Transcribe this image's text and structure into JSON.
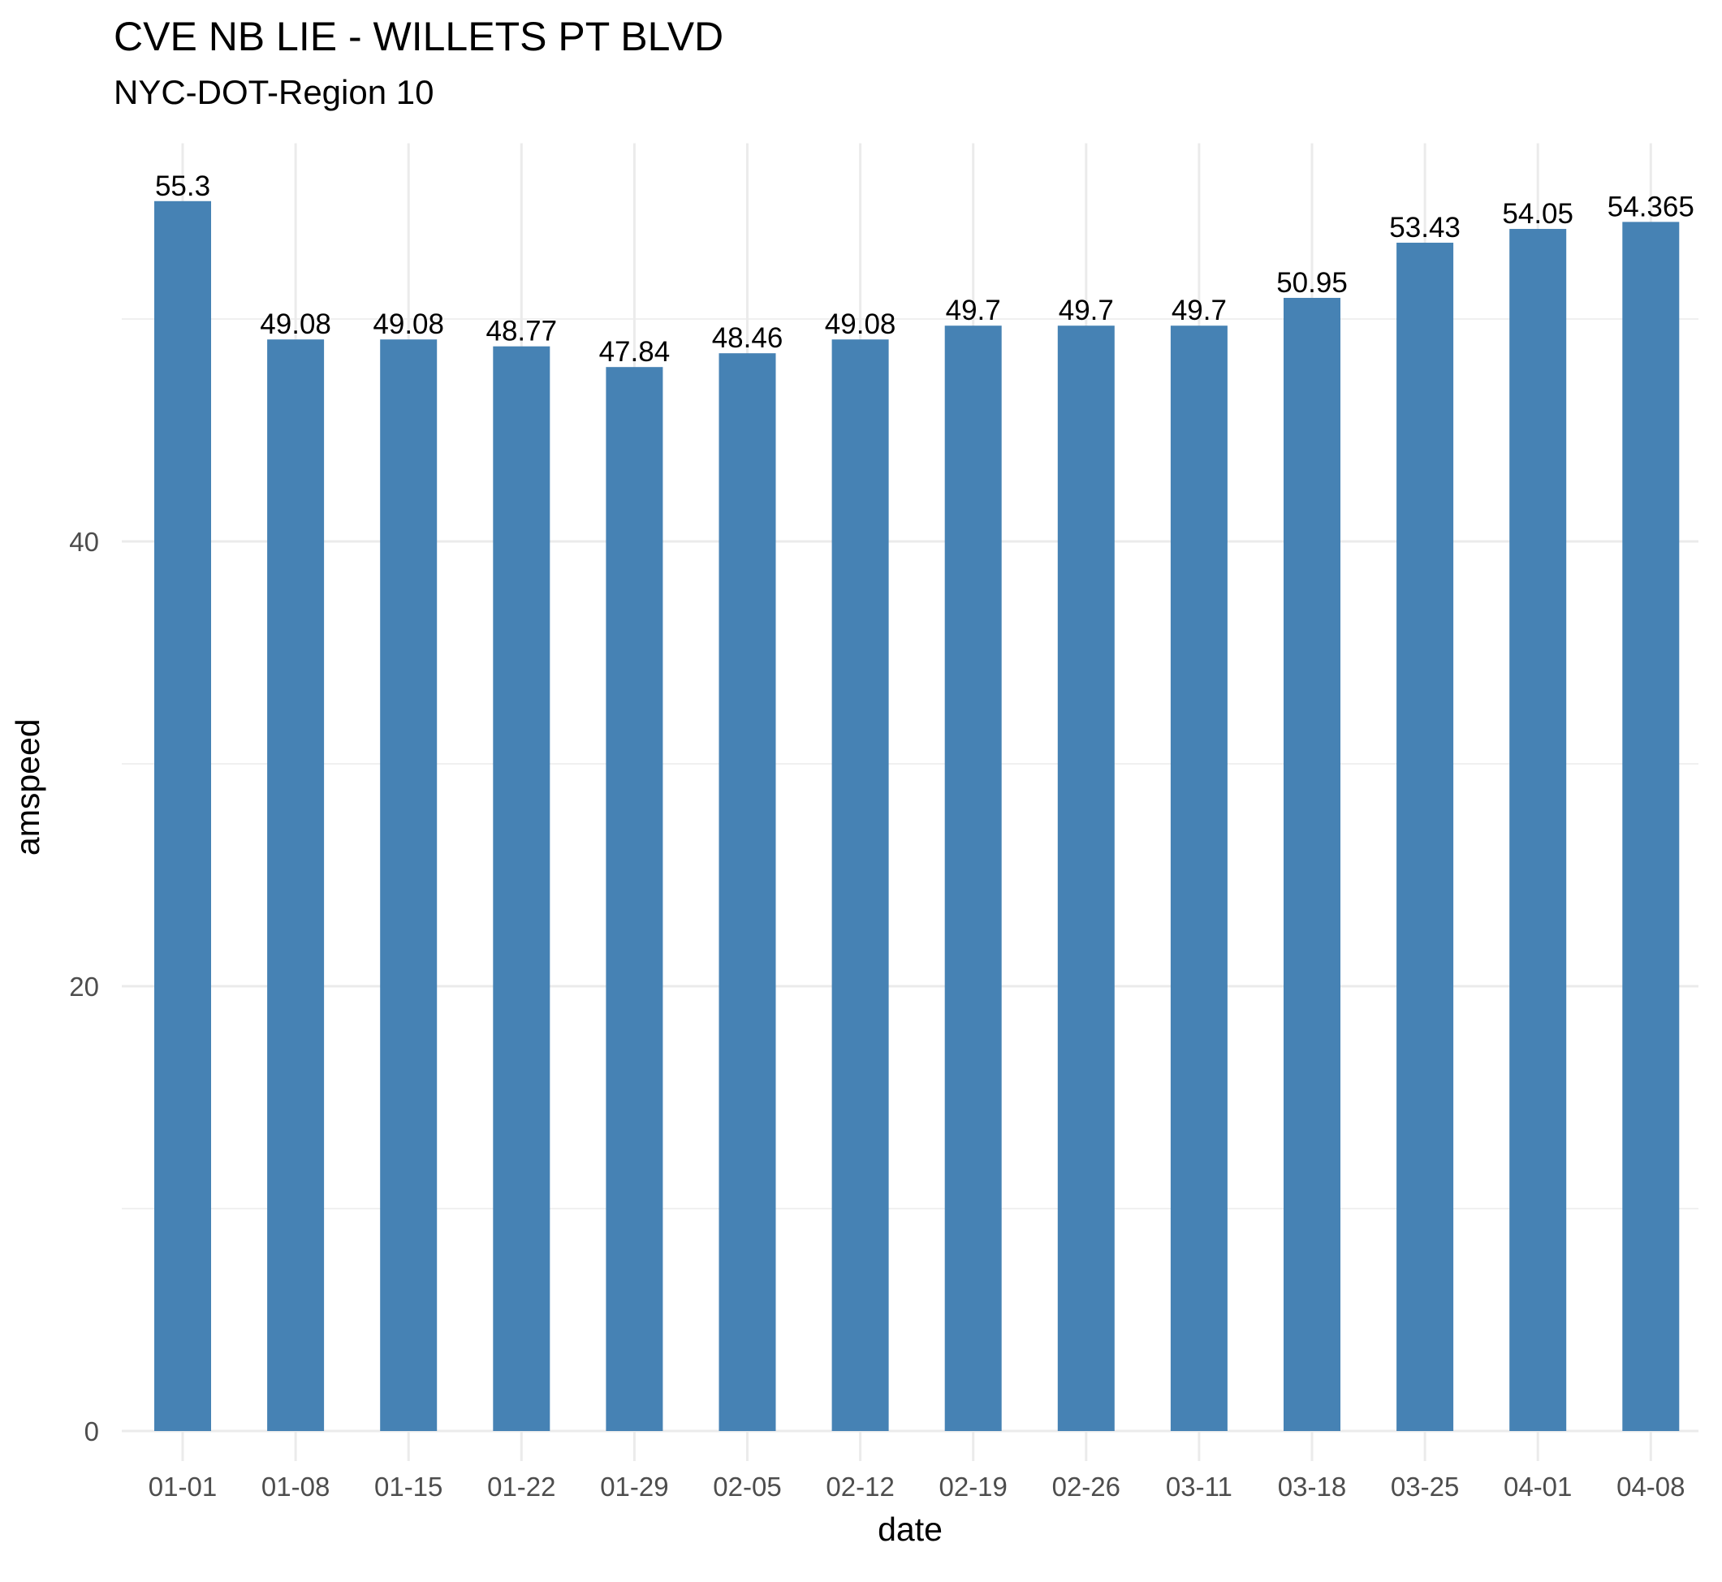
{
  "title": "CVE NB LIE - WILLETS PT BLVD",
  "subtitle": "NYC-DOT-Region 10",
  "chart_data": {
    "type": "bar",
    "categories": [
      "01-01",
      "01-08",
      "01-15",
      "01-22",
      "01-29",
      "02-05",
      "02-12",
      "02-19",
      "02-26",
      "03-11",
      "03-18",
      "03-25",
      "04-01",
      "04-08"
    ],
    "values": [
      55.3,
      49.08,
      49.08,
      48.77,
      47.84,
      48.46,
      49.08,
      49.7,
      49.7,
      49.7,
      50.95,
      53.43,
      54.05,
      54.365
    ],
    "data_labels": [
      "55.3",
      "49.08",
      "49.08",
      "48.77",
      "47.84",
      "48.46",
      "49.08",
      "49.7",
      "49.7",
      "49.7",
      "50.95",
      "53.43",
      "54.05",
      "54.365"
    ],
    "xlabel": "date",
    "ylabel": "amspeed",
    "ylim": [
      0,
      57.9
    ],
    "yticks": [
      0,
      20,
      40
    ],
    "ytick_labels": [
      "0",
      "20",
      "40"
    ],
    "grid": true,
    "legend": "none",
    "bar_color": "#4682B4",
    "grid_color": "#EBEBEB"
  }
}
